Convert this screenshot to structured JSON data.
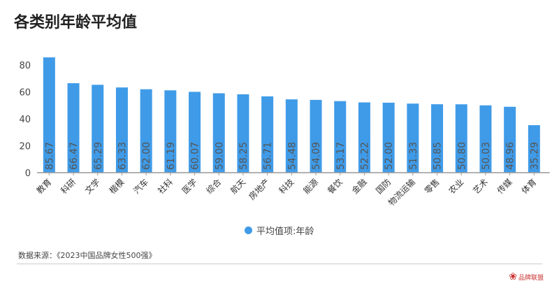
{
  "chart_data": {
    "type": "bar",
    "title": "各类别年龄平均值",
    "categories": [
      "教育",
      "科研",
      "文学",
      "楷模",
      "汽车",
      "社科",
      "医学",
      "综合",
      "航天",
      "房地产",
      "科技",
      "能源",
      "餐饮",
      "金融",
      "国防",
      "物流运输",
      "零售",
      "农业",
      "艺术",
      "传媒",
      "体育"
    ],
    "series": [
      {
        "name": "平均值项:年龄",
        "values": [
          85.67,
          66.47,
          65.29,
          63.33,
          62.0,
          61.19,
          60.07,
          59.0,
          58.25,
          56.71,
          54.48,
          54.09,
          53.17,
          52.22,
          52.0,
          51.33,
          50.85,
          50.8,
          50.03,
          48.96,
          35.29
        ]
      }
    ],
    "yticks": [
      0,
      20,
      40,
      60,
      80
    ],
    "ylim": [
      0,
      90
    ],
    "grid": false,
    "legend_placement": "bottom",
    "bar_color": "#3f9be8"
  },
  "source": "数据来源：《2023中国品牌女性500强》",
  "logo_text": "品牌联盟"
}
